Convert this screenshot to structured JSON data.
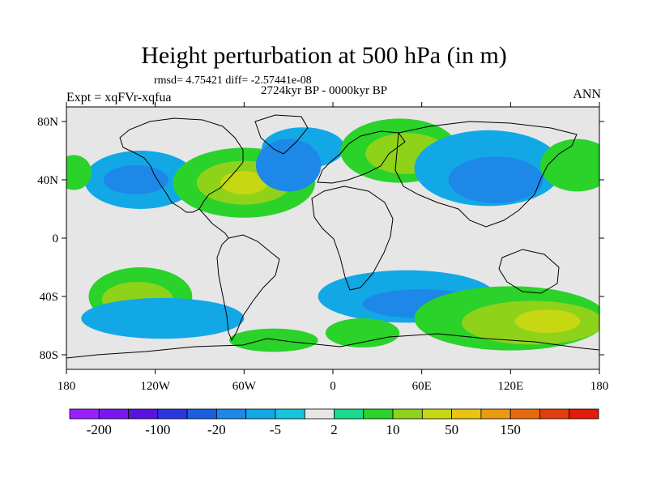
{
  "title": "Height perturbation at 500 hPa (in m)",
  "stats": "rmsd= 4.75421 diff= -2.57441e-08",
  "period": "2724kyr BP - 0000kyr BP",
  "expt": "Expt = xqFVr-xqfua",
  "season": "ANN",
  "map": {
    "lon_range": [
      -180,
      180
    ],
    "lat_range": [
      -90,
      90
    ],
    "lon_ticks": [
      {
        "value": -180,
        "label": "180"
      },
      {
        "value": -120,
        "label": "120W"
      },
      {
        "value": -60,
        "label": "60W"
      },
      {
        "value": 0,
        "label": "0"
      },
      {
        "value": 60,
        "label": "60E"
      },
      {
        "value": 120,
        "label": "120E"
      },
      {
        "value": 180,
        "label": "180"
      }
    ],
    "lat_ticks": [
      {
        "value": 80,
        "label": "80N"
      },
      {
        "value": 40,
        "label": "40N"
      },
      {
        "value": 0,
        "label": "0"
      },
      {
        "value": -40,
        "label": "40S"
      },
      {
        "value": -80,
        "label": "80S"
      }
    ],
    "background_color": "#e6e6e6",
    "coast_color": "#000000"
  },
  "colorbar": {
    "colors": [
      "#9a1fff",
      "#7817f0",
      "#5a12de",
      "#2a37e0",
      "#1a5fe0",
      "#1d88e8",
      "#12a8e6",
      "#16c4de",
      "#e6e6e6",
      "#18db8c",
      "#2ad22a",
      "#8fd21a",
      "#c6d812",
      "#e8c411",
      "#ea9a0f",
      "#e66a0d",
      "#e23d0c",
      "#e21b0a"
    ],
    "labels": [
      {
        "after_box": 1,
        "text": "-200"
      },
      {
        "after_box": 3,
        "text": "-100"
      },
      {
        "after_box": 5,
        "text": "-20"
      },
      {
        "after_box": 7,
        "text": "-5"
      },
      {
        "after_box": 9,
        "text": "2"
      },
      {
        "after_box": 11,
        "text": "10"
      },
      {
        "after_box": 13,
        "text": "50"
      },
      {
        "after_box": 15,
        "text": "150"
      }
    ]
  },
  "anomalies": [
    {
      "lon": -130,
      "lat": 40,
      "rx": 38,
      "ry": 20,
      "level": -5
    },
    {
      "lon": -133,
      "lat": 40,
      "rx": 22,
      "ry": 10,
      "level": -20
    },
    {
      "lon": -60,
      "lat": 38,
      "rx": 48,
      "ry": 24,
      "level": 5
    },
    {
      "lon": -60,
      "lat": 38,
      "rx": 32,
      "ry": 15,
      "level": 10
    },
    {
      "lon": -60,
      "lat": 38,
      "rx": 16,
      "ry": 8,
      "level": 50
    },
    {
      "lon": -20,
      "lat": 62,
      "rx": 28,
      "ry": 14,
      "level": -5
    },
    {
      "lon": -30,
      "lat": 50,
      "rx": 22,
      "ry": 18,
      "level": -20
    },
    {
      "lon": 45,
      "lat": 60,
      "rx": 40,
      "ry": 22,
      "level": 5
    },
    {
      "lon": 50,
      "lat": 58,
      "rx": 28,
      "ry": 14,
      "level": 10
    },
    {
      "lon": 105,
      "lat": 48,
      "rx": 50,
      "ry": 26,
      "level": -5
    },
    {
      "lon": 110,
      "lat": 40,
      "rx": 32,
      "ry": 16,
      "level": -20
    },
    {
      "lon": 165,
      "lat": 50,
      "rx": 25,
      "ry": 18,
      "level": 5
    },
    {
      "lon": -175,
      "lat": 45,
      "rx": 12,
      "ry": 12,
      "level": 5
    },
    {
      "lon": -130,
      "lat": -40,
      "rx": 35,
      "ry": 20,
      "level": 5
    },
    {
      "lon": -132,
      "lat": -42,
      "rx": 24,
      "ry": 12,
      "level": 10
    },
    {
      "lon": -115,
      "lat": -55,
      "rx": 55,
      "ry": 14,
      "level": -5
    },
    {
      "lon": 50,
      "lat": -40,
      "rx": 60,
      "ry": 18,
      "level": -5
    },
    {
      "lon": 60,
      "lat": -45,
      "rx": 40,
      "ry": 10,
      "level": -20
    },
    {
      "lon": 120,
      "lat": -55,
      "rx": 65,
      "ry": 22,
      "level": 5
    },
    {
      "lon": 135,
      "lat": -58,
      "rx": 48,
      "ry": 15,
      "level": 10
    },
    {
      "lon": 145,
      "lat": -57,
      "rx": 22,
      "ry": 8,
      "level": 50
    },
    {
      "lon": 20,
      "lat": -65,
      "rx": 25,
      "ry": 10,
      "level": 5
    },
    {
      "lon": -40,
      "lat": -70,
      "rx": 30,
      "ry": 8,
      "level": 5
    }
  ]
}
